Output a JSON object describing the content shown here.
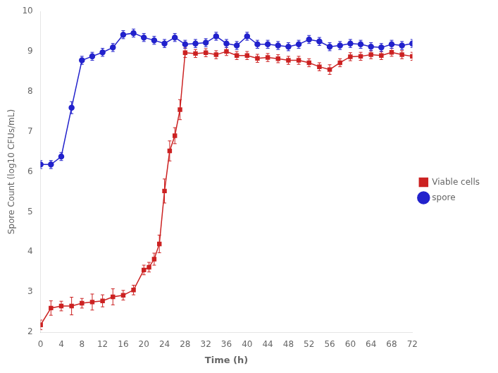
{
  "chart_data": {
    "type": "line",
    "xlabel": "Time (h)",
    "ylabel": "Spore Count (log10 CFUs/mL)",
    "xlim": [
      0,
      72
    ],
    "ylim": [
      2,
      10
    ],
    "xticks": [
      0,
      4,
      8,
      12,
      16,
      20,
      24,
      28,
      32,
      36,
      40,
      44,
      48,
      52,
      56,
      60,
      64,
      68,
      72
    ],
    "yticks": [
      2,
      3,
      4,
      5,
      6,
      7,
      8,
      9,
      10
    ],
    "grid": false,
    "legend": "right",
    "series": [
      {
        "name": "Viable cells",
        "color": "#CC2222",
        "marker": "square",
        "x": [
          0,
          2,
          4,
          6,
          8,
          10,
          12,
          14,
          16,
          18,
          20,
          21,
          22,
          23,
          24,
          25,
          26,
          27,
          28,
          30,
          32,
          34,
          36,
          38,
          40,
          42,
          44,
          46,
          48,
          50,
          52,
          54,
          56,
          58,
          60,
          62,
          64,
          66,
          68,
          70,
          72
        ],
        "values": [
          2.18,
          2.6,
          2.65,
          2.65,
          2.72,
          2.75,
          2.78,
          2.88,
          2.92,
          3.05,
          3.55,
          3.62,
          3.82,
          4.2,
          5.52,
          6.52,
          6.9,
          7.55,
          8.97,
          8.95,
          8.97,
          8.92,
          9.0,
          8.9,
          8.9,
          8.83,
          8.85,
          8.82,
          8.78,
          8.78,
          8.72,
          8.62,
          8.55,
          8.72,
          8.87,
          8.88,
          8.92,
          8.9,
          8.98,
          8.92,
          8.88
        ],
        "errors": [
          0.12,
          0.18,
          0.12,
          0.22,
          0.12,
          0.2,
          0.15,
          0.2,
          0.12,
          0.12,
          0.12,
          0.12,
          0.15,
          0.22,
          0.3,
          0.25,
          0.2,
          0.25,
          0.12,
          0.1,
          0.1,
          0.1,
          0.1,
          0.1,
          0.1,
          0.1,
          0.1,
          0.1,
          0.1,
          0.1,
          0.1,
          0.1,
          0.12,
          0.1,
          0.1,
          0.1,
          0.1,
          0.1,
          0.1,
          0.1,
          0.1
        ]
      },
      {
        "name": "spore",
        "color": "#2222CC",
        "marker": "circle",
        "x": [
          0,
          2,
          4,
          6,
          8,
          10,
          12,
          14,
          16,
          18,
          20,
          22,
          24,
          26,
          28,
          30,
          32,
          34,
          36,
          38,
          40,
          42,
          44,
          46,
          48,
          50,
          52,
          54,
          56,
          58,
          60,
          62,
          64,
          66,
          68,
          70,
          72
        ],
        "values": [
          6.18,
          6.18,
          6.38,
          7.6,
          8.78,
          8.88,
          8.98,
          9.1,
          9.42,
          9.46,
          9.35,
          9.28,
          9.2,
          9.35,
          9.18,
          9.2,
          9.22,
          9.38,
          9.2,
          9.15,
          9.38,
          9.18,
          9.18,
          9.15,
          9.12,
          9.18,
          9.3,
          9.25,
          9.12,
          9.15,
          9.2,
          9.18,
          9.12,
          9.1,
          9.18,
          9.15,
          9.2
        ],
        "errors": [
          0.1,
          0.1,
          0.1,
          0.15,
          0.1,
          0.1,
          0.1,
          0.1,
          0.1,
          0.1,
          0.1,
          0.1,
          0.1,
          0.1,
          0.1,
          0.1,
          0.1,
          0.1,
          0.1,
          0.1,
          0.1,
          0.1,
          0.1,
          0.1,
          0.1,
          0.1,
          0.1,
          0.1,
          0.1,
          0.1,
          0.1,
          0.1,
          0.1,
          0.1,
          0.1,
          0.1,
          0.1
        ]
      }
    ]
  }
}
